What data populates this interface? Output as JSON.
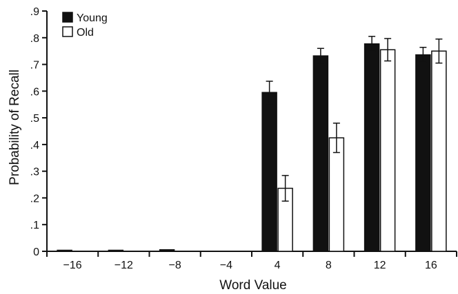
{
  "chart_data": {
    "type": "bar",
    "xlabel": "Word Value",
    "ylabel": "Probability of Recall",
    "categories": [
      "−16",
      "−12",
      "−8",
      "−4",
      "4",
      "8",
      "12",
      "16"
    ],
    "series": [
      {
        "name": "Young",
        "color": "#111111",
        "values": [
          0.004,
          0.004,
          0.006,
          0.0,
          0.595,
          0.732,
          0.777,
          0.736
        ],
        "errors": [
          0.003,
          0.003,
          0.004,
          0.0,
          0.042,
          0.028,
          0.028,
          0.028
        ]
      },
      {
        "name": "Old",
        "color": "#ffffff",
        "values": [
          0.0,
          0.0,
          0.0,
          0.0,
          0.236,
          0.425,
          0.755,
          0.75
        ],
        "errors": [
          0.0,
          0.0,
          0.0,
          0.0,
          0.048,
          0.055,
          0.042,
          0.045
        ]
      }
    ],
    "ylim": [
      0,
      0.9
    ],
    "yticks": [
      0,
      0.1,
      0.2,
      0.3,
      0.4,
      0.5,
      0.6,
      0.7,
      0.8,
      0.9
    ],
    "ytick_labels": [
      "0",
      ".1",
      ".2",
      ".3",
      ".4",
      ".5",
      ".6",
      ".7",
      ".8",
      ".9"
    ],
    "legend_position": "top-left",
    "grid": false
  }
}
